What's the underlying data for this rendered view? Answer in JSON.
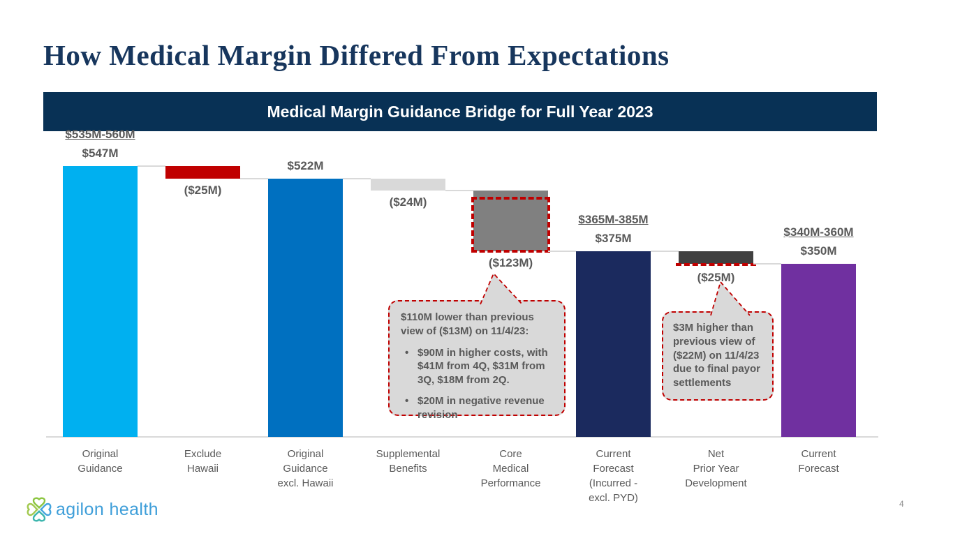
{
  "slide": {
    "title": "How Medical Margin Differed From Expectations",
    "page_number": "4",
    "logo_text": "agilon health"
  },
  "banner": {
    "title": "Medical Margin Guidance Bridge for Full Year 2023"
  },
  "colors": {
    "banner_bg": "#083155",
    "title_color": "#17365D",
    "label_color": "#595959",
    "connector_color": "#D9D9D9",
    "callout_bg": "#D9D9D9",
    "callout_border": "#C00000",
    "logo_text_color": "#3E9ED9",
    "page_num_color": "#8a8a8a"
  },
  "chart_data": {
    "type": "bar",
    "subtype": "waterfall",
    "title": "Medical Margin Guidance Bridge for Full Year 2023",
    "unit": "$M",
    "ylim": [
      0,
      547
    ],
    "grid": false,
    "steps": [
      {
        "id": "original-guidance",
        "category_lines": [
          "Original",
          "Guidance"
        ],
        "type": "total",
        "value": 547,
        "value_label": "$547M",
        "range_label": "$535M-560M",
        "color": "#00B0F0",
        "label_side": "above"
      },
      {
        "id": "exclude-hawaii",
        "category_lines": [
          "Exclude",
          "Hawaii"
        ],
        "type": "delta",
        "value": -25,
        "value_label": "($25M)",
        "color": "#C00000",
        "label_side": "below"
      },
      {
        "id": "original-guidance-excl-hawaii",
        "category_lines": [
          "Original",
          "Guidance",
          "excl. Hawaii"
        ],
        "type": "total",
        "value": 522,
        "value_label": "$522M",
        "color": "#0070C0",
        "label_side": "above"
      },
      {
        "id": "supplemental-benefits",
        "category_lines": [
          "Supplemental",
          "Benefits"
        ],
        "type": "delta",
        "value": -24,
        "value_label": "($24M)",
        "color": "#D9D9D9",
        "label_side": "below"
      },
      {
        "id": "core-medical-performance",
        "category_lines": [
          "Core",
          "Medical",
          "Performance"
        ],
        "type": "delta",
        "value": -123,
        "value_label": "($123M)",
        "color": "#808080",
        "label_side": "below",
        "dashed_box": {
          "from_top_m": 13
        }
      },
      {
        "id": "current-forecast-incurred",
        "category_lines": [
          "Current",
          "Forecast",
          "(Incurred -",
          "excl. PYD)"
        ],
        "type": "total",
        "value": 375,
        "value_label": "$375M",
        "range_label": "$365M-385M",
        "color": "#1B2A5E",
        "label_side": "above"
      },
      {
        "id": "net-prior-year-development",
        "category_lines": [
          "Net",
          "Prior Year",
          "Development"
        ],
        "type": "delta",
        "value": -25,
        "value_label": "($25M)",
        "color": "#404040",
        "label_side": "below",
        "dashed_bottom": true
      },
      {
        "id": "current-forecast",
        "category_lines": [
          "Current",
          "Forecast"
        ],
        "type": "total",
        "value": 350,
        "value_label": "$350M",
        "range_label": "$340M-360M",
        "color": "#7030A0",
        "label_side": "above"
      }
    ]
  },
  "callouts": {
    "core_medical": {
      "heading": "$110M lower than previous view of ($13M) on 11/4/23:",
      "bullets": [
        "$90M in higher costs, with $41M from 4Q, $31M from 3Q, $18M from 2Q.",
        "$20M in negative revenue revision"
      ]
    },
    "prior_year": {
      "text": "$3M higher than previous view of ($22M) on 11/4/23 due to final payor settlements"
    }
  }
}
